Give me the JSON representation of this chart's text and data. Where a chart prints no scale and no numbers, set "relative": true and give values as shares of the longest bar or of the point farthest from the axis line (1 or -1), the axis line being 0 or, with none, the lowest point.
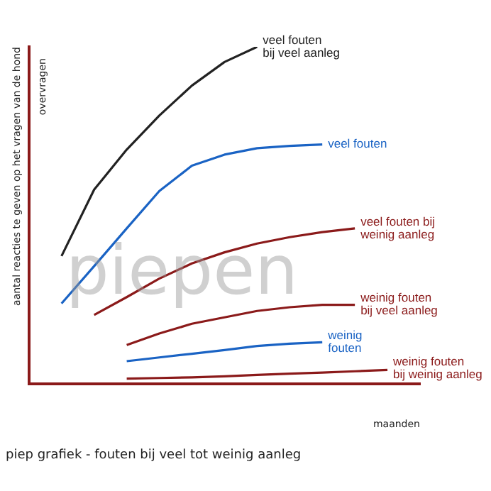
{
  "chart_data": {
    "type": "line",
    "title": "piep grafiek - fouten bij veel tot weinig aanleg",
    "xlabel": "maanden",
    "ylabel": "aantal reacties te geven op het vragen van de hond",
    "annotations": [
      "piepen",
      "overvragen"
    ],
    "relative": true,
    "categories": [
      null,
      null,
      null,
      null,
      null,
      null,
      null,
      null,
      null,
      null,
      null,
      null,
      null
    ],
    "grid": false,
    "legend": false,
    "marker": "none",
    "line_style": "solid",
    "series": [
      {
        "name": "veel fouten bij veel aanleg",
        "color": "#222222",
        "values": [
          null,
          0.379,
          0.576,
          0.695,
          0.796,
          0.885,
          0.955,
          1,
          null,
          null,
          null,
          null,
          null
        ]
      },
      {
        "name": "veel fouten",
        "color": "#1a63c4",
        "values": [
          null,
          0.238,
          0.349,
          0.461,
          0.572,
          0.647,
          0.68,
          0.699,
          0.706,
          0.71,
          null,
          null,
          null
        ]
      },
      {
        "name": "veel fouten bij weinig aanleg",
        "color": "#8b1a1a",
        "values": [
          null,
          null,
          0.204,
          0.257,
          0.312,
          0.357,
          0.39,
          0.416,
          0.435,
          0.45,
          0.461,
          null,
          null
        ]
      },
      {
        "name": "weinig fouten bij veel aanleg",
        "color": "#8b1a1a",
        "values": [
          null,
          null,
          null,
          0.115,
          0.149,
          0.178,
          0.197,
          0.216,
          0.227,
          0.234,
          0.234,
          null,
          null
        ]
      },
      {
        "name": "weinig fouten",
        "color": "#1a63c4",
        "values": [
          null,
          null,
          null,
          0.067,
          0.078,
          0.089,
          0.1,
          0.112,
          0.119,
          0.123,
          null,
          null,
          null
        ]
      },
      {
        "name": "weinig fouten bij weinig aanleg",
        "color": "#8b1a1a",
        "values": [
          null,
          null,
          null,
          0.015,
          0.017,
          0.019,
          0.022,
          0.026,
          0.03,
          0.033,
          0.037,
          0.041,
          null
        ]
      }
    ]
  }
}
